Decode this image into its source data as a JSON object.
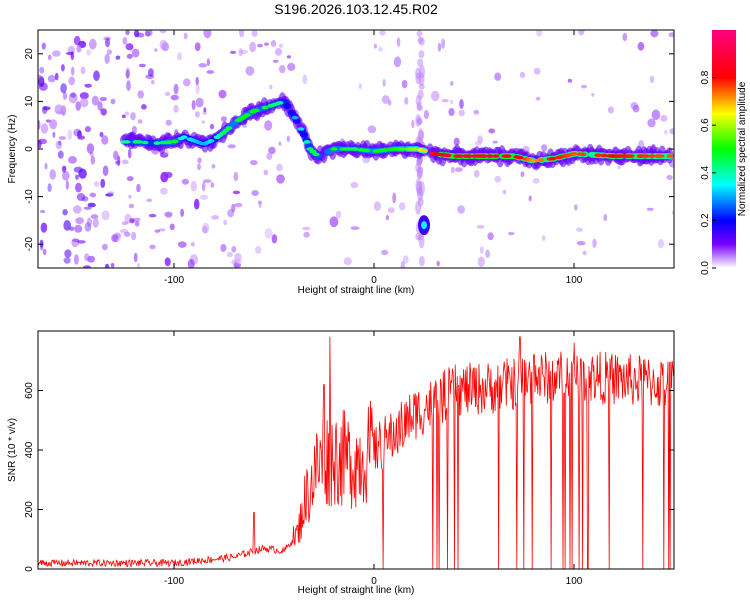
{
  "figure": {
    "title": "S196.2026.103.12.45.R02",
    "background_color": "#ffffff",
    "frame_color": "#000000"
  },
  "chart_data": [
    {
      "type": "heatmap",
      "title": "",
      "xlabel": "Height of straight line (km)",
      "ylabel": "Frequency (Hz)",
      "xlim": [
        -168,
        150
      ],
      "ylim": [
        -25,
        25
      ],
      "xticks": [
        -100,
        0,
        100
      ],
      "yticks": [
        -20,
        -10,
        0,
        10,
        20
      ],
      "colorbar": {
        "label": "Normalized spectral amplitude",
        "range": [
          0,
          1
        ],
        "ticks": [
          0.0,
          0.2,
          0.4,
          0.6,
          0.8
        ],
        "stops": [
          {
            "value": 0.0,
            "color": "#ffffff"
          },
          {
            "value": 0.1,
            "color": "#7800ff"
          },
          {
            "value": 0.2,
            "color": "#0000ff"
          },
          {
            "value": 0.35,
            "color": "#00ffff"
          },
          {
            "value": 0.5,
            "color": "#00ff00"
          },
          {
            "value": 0.65,
            "color": "#ffff00"
          },
          {
            "value": 0.8,
            "color": "#ff0000"
          },
          {
            "value": 1.0,
            "color": "#ff0080"
          }
        ]
      },
      "ridge": {
        "points": [
          {
            "x": -125,
            "y": 1.5
          },
          {
            "x": -118,
            "y": 1.5
          },
          {
            "x": -110,
            "y": 1.2
          },
          {
            "x": -100,
            "y": 1.5
          },
          {
            "x": -95,
            "y": 2.5
          },
          {
            "x": -85,
            "y": 1.0
          },
          {
            "x": -80,
            "y": 2.0
          },
          {
            "x": -75,
            "y": 3.5
          },
          {
            "x": -68,
            "y": 6.0
          },
          {
            "x": -60,
            "y": 8.0
          },
          {
            "x": -52,
            "y": 9.0
          },
          {
            "x": -45,
            "y": 10.0
          },
          {
            "x": -40,
            "y": 7.0
          },
          {
            "x": -35,
            "y": 3.0
          },
          {
            "x": -32,
            "y": 0.0
          },
          {
            "x": -28,
            "y": -1.5
          },
          {
            "x": -20,
            "y": 0.0
          },
          {
            "x": -10,
            "y": 0.0
          },
          {
            "x": 0,
            "y": -0.5
          },
          {
            "x": 10,
            "y": 0.0
          },
          {
            "x": 22,
            "y": 0.0
          },
          {
            "x": 30,
            "y": -1.0
          },
          {
            "x": 40,
            "y": -1.5
          },
          {
            "x": 55,
            "y": -1.5
          },
          {
            "x": 70,
            "y": -1.5
          },
          {
            "x": 80,
            "y": -2.5
          },
          {
            "x": 90,
            "y": -2.0
          },
          {
            "x": 100,
            "y": -1.0
          },
          {
            "x": 120,
            "y": -1.5
          },
          {
            "x": 148,
            "y": -1.5
          }
        ],
        "amplitudes": [
          0.4,
          0.45,
          0.4,
          0.5,
          0.35,
          0.3,
          0.35,
          0.45,
          0.5,
          0.5,
          0.45,
          0.4,
          0.3,
          0.35,
          0.45,
          0.45,
          0.5,
          0.45,
          0.5,
          0.5,
          0.6,
          0.8,
          0.9,
          0.9,
          0.85,
          0.7,
          0.8,
          0.75,
          0.8,
          0.75
        ]
      },
      "isolated_blob": {
        "x": 25,
        "y": -16,
        "amplitude": 0.35
      },
      "data_gap": {
        "x_start": 26,
        "x_end": 28
      }
    },
    {
      "type": "line",
      "title": "",
      "xlabel": "Height of straight line (km)",
      "ylabel": "SNR (10 * v/v)",
      "xlim": [
        -168,
        150
      ],
      "ylim": [
        0,
        800
      ],
      "xticks": [
        -100,
        0,
        100
      ],
      "yticks": [
        0,
        200,
        400,
        600
      ],
      "line_color": "#ff0000",
      "trend": [
        {
          "x": -168,
          "y": 20
        },
        {
          "x": -100,
          "y": 20
        },
        {
          "x": -70,
          "y": 40
        },
        {
          "x": -55,
          "y": 70
        },
        {
          "x": -45,
          "y": 60
        },
        {
          "x": -38,
          "y": 120
        },
        {
          "x": -35,
          "y": 220
        },
        {
          "x": -28,
          "y": 350
        },
        {
          "x": -20,
          "y": 380
        },
        {
          "x": -10,
          "y": 360
        },
        {
          "x": 0,
          "y": 400
        },
        {
          "x": 10,
          "y": 450
        },
        {
          "x": 20,
          "y": 520
        },
        {
          "x": 30,
          "y": 560
        },
        {
          "x": 40,
          "y": 600
        },
        {
          "x": 60,
          "y": 610
        },
        {
          "x": 80,
          "y": 640
        },
        {
          "x": 100,
          "y": 650
        },
        {
          "x": 120,
          "y": 640
        },
        {
          "x": 150,
          "y": 620
        }
      ],
      "spikes": [
        {
          "x": -60,
          "y": 190
        },
        {
          "x": -22,
          "y": 780
        },
        {
          "x": -25,
          "y": 620
        },
        {
          "x": 73,
          "y": 780
        },
        {
          "x": 80,
          "y": 720
        },
        {
          "x": 100,
          "y": 760
        }
      ],
      "dropouts_to_zero_x_range": [
        0,
        150
      ]
    }
  ]
}
